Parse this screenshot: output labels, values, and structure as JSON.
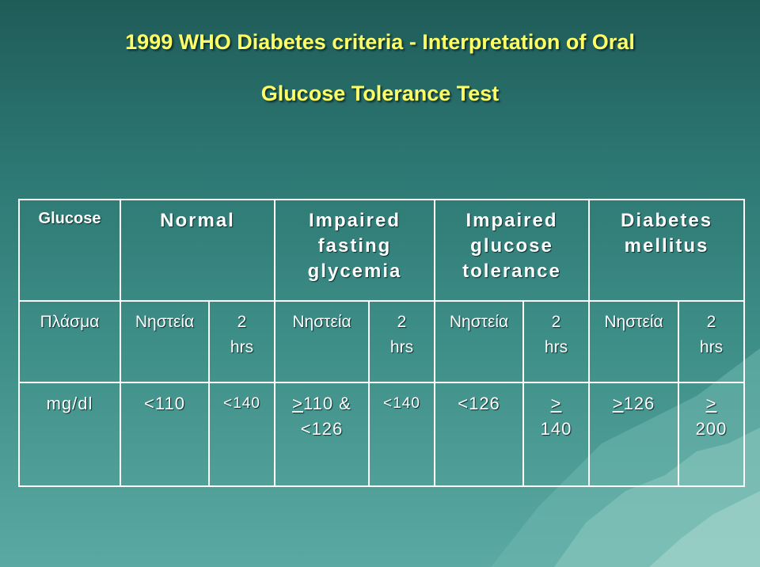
{
  "slide": {
    "title_line1": "1999 WHO Diabetes criteria - Interpretation of Oral",
    "title_line2": "Glucose Tolerance Test"
  },
  "table": {
    "header": {
      "glucose": "Glucose",
      "normal": "Normal",
      "ifg": [
        "Impaired",
        "fasting",
        "glycemia"
      ],
      "igt": [
        "Impaired",
        "glucose",
        "tolerance"
      ],
      "dm": [
        "Diabetes",
        "mellitus"
      ]
    },
    "subheader": {
      "plasma": "Πλάσμα",
      "fasting": "Νηστεία",
      "two_hrs": [
        "2",
        "hrs"
      ]
    },
    "values_row": {
      "unit": "mg/dl",
      "normal_fasting": "<110",
      "normal_2h": "<140",
      "ifg_fasting_ge": ">",
      "ifg_fasting_rest": "110 &",
      "ifg_fasting_line2": "<126",
      "ifg_2h": "<140",
      "igt_fasting": "<126",
      "igt_2h_ge": ">",
      "igt_2h_value": "140",
      "dm_fasting_ge": ">",
      "dm_fasting_value": "126",
      "dm_2h_ge": ">",
      "dm_2h_value": "200"
    }
  }
}
